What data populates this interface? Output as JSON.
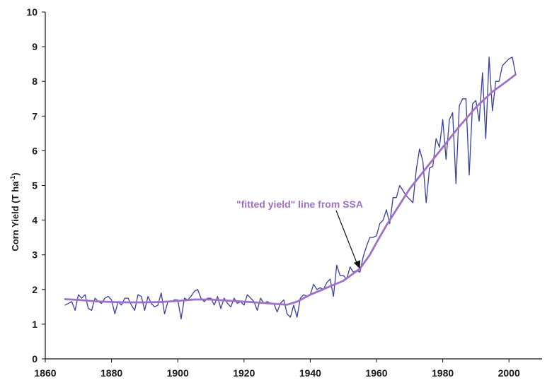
{
  "chart_data": {
    "type": "line",
    "title": "",
    "xlabel": "",
    "ylabel": "Corn Yield (T ha",
    "ylabel_superscript": "-1",
    "ylabel_close": ")",
    "xlim": [
      1860,
      2010
    ],
    "ylim": [
      0,
      10
    ],
    "xticks": [
      1860,
      1880,
      1900,
      1920,
      1940,
      1960,
      1980,
      2000
    ],
    "yticks": [
      0,
      1,
      2,
      3,
      4,
      5,
      6,
      7,
      8,
      9,
      10
    ],
    "grid": false,
    "annotation": {
      "text": "\"fitted yield\" line from SSA",
      "color": "#a070c8",
      "arrow_to": [
        1955,
        2.6
      ]
    },
    "series": [
      {
        "style": "observed",
        "color": "#3a3f9a",
        "x": [
          1866,
          1867,
          1868,
          1869,
          1870,
          1871,
          1872,
          1873,
          1874,
          1875,
          1876,
          1877,
          1878,
          1879,
          1880,
          1881,
          1882,
          1883,
          1884,
          1885,
          1886,
          1887,
          1888,
          1889,
          1890,
          1891,
          1892,
          1893,
          1894,
          1895,
          1896,
          1897,
          1898,
          1899,
          1900,
          1901,
          1902,
          1903,
          1904,
          1905,
          1906,
          1907,
          1908,
          1909,
          1910,
          1911,
          1912,
          1913,
          1914,
          1915,
          1916,
          1917,
          1918,
          1919,
          1920,
          1921,
          1922,
          1923,
          1924,
          1925,
          1926,
          1927,
          1928,
          1929,
          1930,
          1931,
          1932,
          1933,
          1934,
          1935,
          1936,
          1937,
          1938,
          1939,
          1940,
          1941,
          1942,
          1943,
          1944,
          1945,
          1946,
          1947,
          1948,
          1949,
          1950,
          1951,
          1952,
          1953,
          1954,
          1955,
          1956,
          1957,
          1958,
          1959,
          1960,
          1961,
          1962,
          1963,
          1964,
          1965,
          1966,
          1967,
          1968,
          1969,
          1970,
          1971,
          1972,
          1973,
          1974,
          1975,
          1976,
          1977,
          1978,
          1979,
          1980,
          1981,
          1982,
          1983,
          1984,
          1985,
          1986,
          1987,
          1988,
          1989,
          1990,
          1991,
          1992,
          1993,
          1994,
          1995,
          1996,
          1997,
          1998,
          1999,
          2000,
          2001,
          2002
        ],
        "values": [
          1.55,
          1.6,
          1.65,
          1.4,
          1.85,
          1.75,
          1.85,
          1.45,
          1.4,
          1.75,
          1.65,
          1.6,
          1.75,
          1.8,
          1.7,
          1.3,
          1.65,
          1.55,
          1.75,
          1.75,
          1.55,
          1.4,
          1.85,
          1.8,
          1.4,
          1.8,
          1.6,
          1.5,
          1.55,
          1.9,
          1.3,
          1.65,
          1.65,
          1.7,
          1.7,
          1.15,
          1.75,
          1.7,
          1.8,
          1.95,
          2.0,
          1.75,
          1.65,
          1.75,
          1.75,
          1.55,
          1.8,
          1.45,
          1.75,
          1.6,
          1.5,
          1.75,
          1.6,
          1.65,
          1.55,
          1.85,
          1.75,
          1.65,
          1.4,
          1.75,
          1.6,
          1.65,
          1.6,
          1.6,
          1.35,
          1.6,
          1.7,
          1.3,
          1.2,
          1.55,
          1.2,
          1.75,
          1.85,
          1.8,
          1.85,
          2.15,
          2.0,
          2.05,
          2.0,
          2.2,
          2.3,
          1.8,
          2.7,
          2.4,
          2.4,
          2.3,
          2.65,
          2.5,
          2.55,
          2.5,
          2.95,
          3.25,
          3.5,
          3.5,
          3.55,
          3.9,
          4.0,
          4.3,
          3.9,
          4.65,
          4.65,
          5.0,
          4.85,
          4.7,
          4.6,
          4.5,
          5.45,
          6.05,
          5.7,
          4.5,
          5.5,
          5.55,
          6.35,
          6.1,
          6.9,
          5.75,
          6.9,
          7.1,
          5.05,
          7.3,
          7.5,
          7.5,
          5.3,
          7.35,
          7.45,
          6.85,
          8.25,
          6.35,
          8.7,
          7.15,
          8.0,
          8.0,
          8.45,
          8.55,
          8.65,
          8.7,
          8.2
        ]
      },
      {
        "style": "fitted",
        "color": "#a070c8",
        "x": [
          1866,
          1870,
          1875,
          1880,
          1885,
          1890,
          1895,
          1900,
          1905,
          1910,
          1915,
          1920,
          1925,
          1930,
          1933,
          1936,
          1940,
          1945,
          1950,
          1955,
          1958,
          1960,
          1963,
          1966,
          1970,
          1975,
          1980,
          1985,
          1990,
          1995,
          2000,
          2002
        ],
        "values": [
          1.72,
          1.7,
          1.66,
          1.64,
          1.63,
          1.63,
          1.64,
          1.67,
          1.71,
          1.71,
          1.68,
          1.65,
          1.62,
          1.58,
          1.56,
          1.65,
          1.85,
          2.05,
          2.25,
          2.6,
          3.0,
          3.35,
          3.85,
          4.3,
          4.9,
          5.5,
          6.1,
          6.7,
          7.25,
          7.7,
          8.05,
          8.2
        ]
      }
    ]
  }
}
